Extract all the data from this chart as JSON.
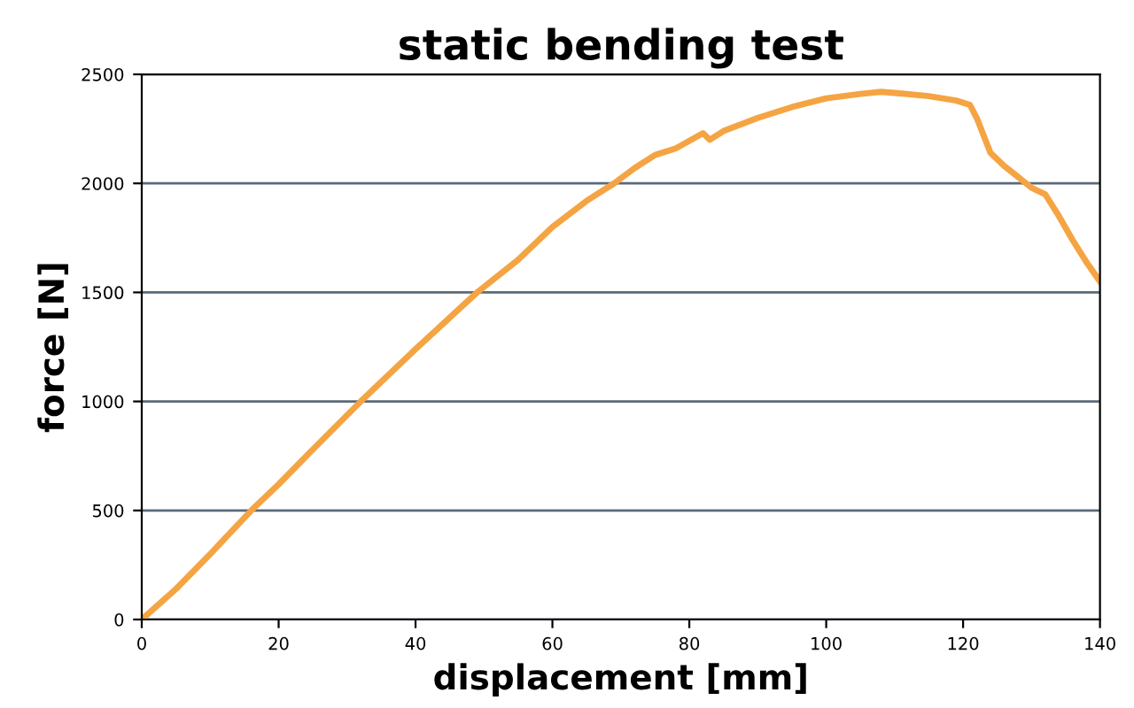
{
  "chart_data": {
    "type": "line",
    "title": "static bending test",
    "xlabel": "displacement [mm]",
    "ylabel": "force [N]",
    "x": [
      0,
      5,
      10,
      16,
      20,
      25,
      32,
      40,
      49,
      55,
      60,
      65,
      69,
      72,
      75,
      78,
      82,
      83,
      85,
      90,
      95,
      100,
      105,
      108,
      110,
      115,
      119,
      121,
      122,
      123,
      124,
      126,
      128,
      130,
      132,
      134,
      136,
      138,
      140
    ],
    "series": [
      {
        "color": "#f5a443",
        "values": [
          0,
          140,
          300,
          500,
          620,
          780,
          1000,
          1240,
          1500,
          1650,
          1800,
          1920,
          2000,
          2070,
          2130,
          2160,
          2230,
          2200,
          2240,
          2300,
          2350,
          2390,
          2410,
          2420,
          2415,
          2400,
          2380,
          2360,
          2300,
          2220,
          2140,
          2080,
          2030,
          1980,
          1950,
          1850,
          1740,
          1640,
          1550
        ]
      }
    ],
    "xlim": [
      0,
      140
    ],
    "xticks": [
      0,
      20,
      40,
      60,
      80,
      100,
      120,
      140
    ],
    "ylim": [
      0,
      2500
    ],
    "yticks": [
      0,
      500,
      1000,
      1500,
      2000,
      2500
    ],
    "grid": "y",
    "legend": false,
    "marker": "none",
    "line_style": "solid"
  }
}
